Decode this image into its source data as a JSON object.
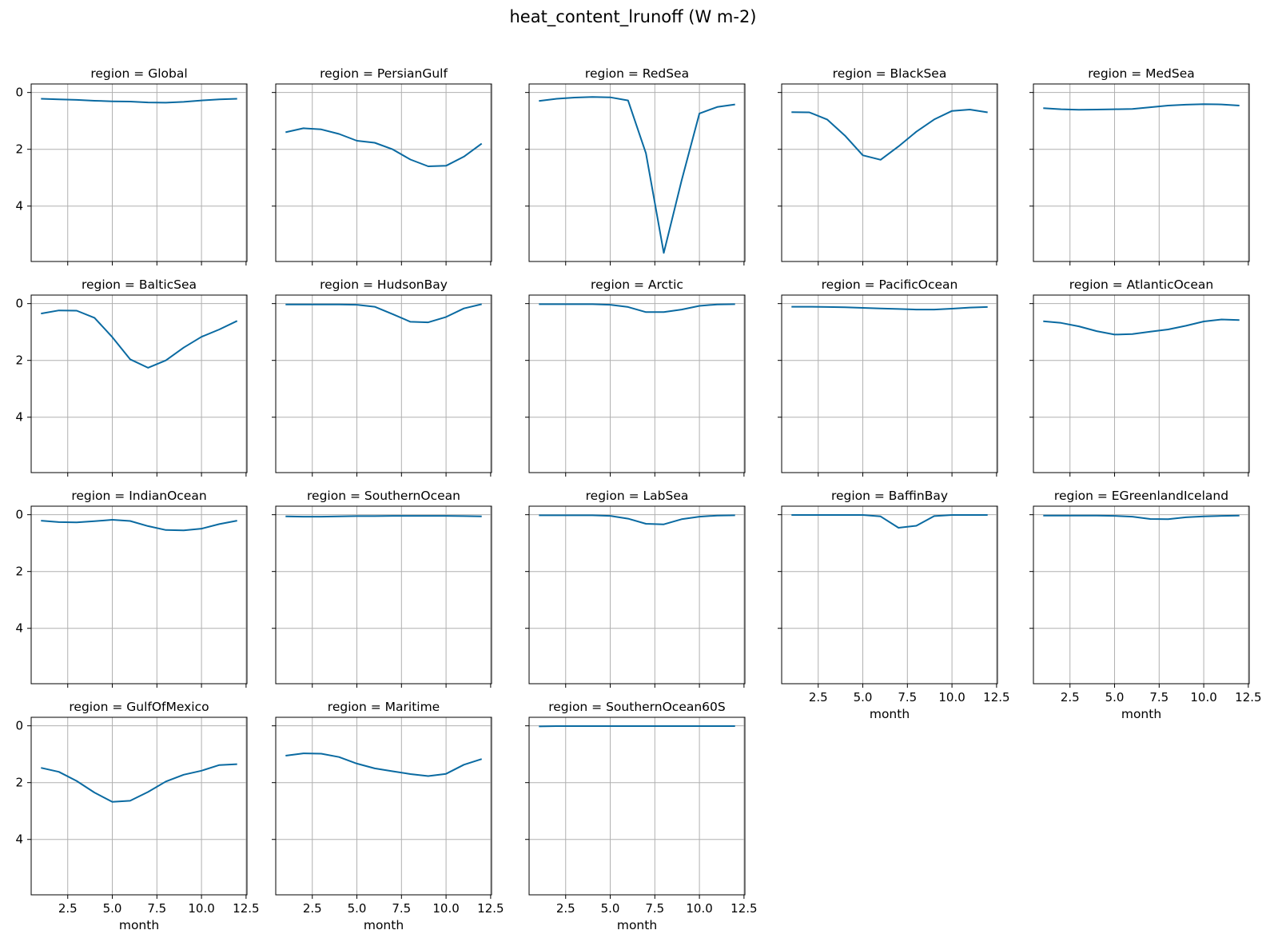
{
  "chart_data": {
    "type": "line",
    "title": "heat_content_lrunoff (W m-2)",
    "facet_label_prefix": "region = ",
    "xlabel": "month",
    "x": [
      1,
      2,
      3,
      4,
      5,
      6,
      7,
      8,
      9,
      10,
      11,
      12
    ],
    "xlim": [
      0.45,
      12.55
    ],
    "ylim": [
      5.95,
      -0.3
    ],
    "y_inverted": true,
    "xticks": [
      2.5,
      5.0,
      7.5,
      10.0,
      12.5
    ],
    "xtick_labels": [
      "2.5",
      "5.0",
      "7.5",
      "10.0",
      "12.5"
    ],
    "yticks": [
      0,
      2,
      4
    ],
    "ytick_labels": [
      "0",
      "2",
      "4"
    ],
    "grid": true,
    "line_color": "#0a6aa1",
    "series": [
      {
        "name": "Global",
        "values": [
          0.22,
          0.24,
          0.26,
          0.29,
          0.31,
          0.32,
          0.35,
          0.36,
          0.33,
          0.28,
          0.24,
          0.22
        ]
      },
      {
        "name": "PersianGulf",
        "values": [
          1.4,
          1.26,
          1.3,
          1.46,
          1.7,
          1.77,
          2.0,
          2.36,
          2.6,
          2.58,
          2.26,
          1.8
        ]
      },
      {
        "name": "RedSea",
        "values": [
          0.3,
          0.22,
          0.18,
          0.16,
          0.17,
          0.28,
          2.14,
          5.65,
          3.1,
          0.74,
          0.51,
          0.42
        ]
      },
      {
        "name": "BlackSea",
        "values": [
          0.69,
          0.7,
          0.95,
          1.52,
          2.21,
          2.37,
          1.9,
          1.38,
          0.95,
          0.65,
          0.6,
          0.7
        ]
      },
      {
        "name": "MedSea",
        "values": [
          0.55,
          0.59,
          0.61,
          0.6,
          0.59,
          0.58,
          0.52,
          0.46,
          0.43,
          0.41,
          0.42,
          0.46
        ]
      },
      {
        "name": "BalticSea",
        "values": [
          0.35,
          0.24,
          0.25,
          0.5,
          1.18,
          1.96,
          2.26,
          2.0,
          1.55,
          1.17,
          0.91,
          0.61
        ]
      },
      {
        "name": "HudsonBay",
        "values": [
          0.03,
          0.03,
          0.03,
          0.03,
          0.04,
          0.11,
          0.37,
          0.64,
          0.66,
          0.47,
          0.17,
          0.02
        ]
      },
      {
        "name": "Arctic",
        "values": [
          0.02,
          0.02,
          0.02,
          0.02,
          0.04,
          0.12,
          0.3,
          0.3,
          0.21,
          0.08,
          0.03,
          0.02
        ]
      },
      {
        "name": "PacificOcean",
        "values": [
          0.11,
          0.11,
          0.12,
          0.13,
          0.15,
          0.17,
          0.19,
          0.21,
          0.21,
          0.18,
          0.14,
          0.12
        ]
      },
      {
        "name": "AtlanticOcean",
        "values": [
          0.62,
          0.68,
          0.8,
          0.97,
          1.09,
          1.07,
          0.99,
          0.91,
          0.78,
          0.63,
          0.56,
          0.58
        ]
      },
      {
        "name": "IndianOcean",
        "values": [
          0.21,
          0.26,
          0.27,
          0.23,
          0.18,
          0.22,
          0.4,
          0.54,
          0.55,
          0.49,
          0.33,
          0.21
        ]
      },
      {
        "name": "SouthernOcean",
        "values": [
          0.06,
          0.07,
          0.07,
          0.06,
          0.05,
          0.05,
          0.04,
          0.04,
          0.04,
          0.04,
          0.05,
          0.06
        ]
      },
      {
        "name": "LabSea",
        "values": [
          0.02,
          0.02,
          0.02,
          0.02,
          0.04,
          0.14,
          0.32,
          0.34,
          0.16,
          0.07,
          0.03,
          0.02
        ]
      },
      {
        "name": "BaffinBay",
        "values": [
          0.01,
          0.01,
          0.01,
          0.01,
          0.01,
          0.06,
          0.46,
          0.39,
          0.05,
          0.01,
          0.01,
          0.01
        ]
      },
      {
        "name": "EGreenlandIceland",
        "values": [
          0.03,
          0.03,
          0.03,
          0.03,
          0.04,
          0.07,
          0.15,
          0.16,
          0.09,
          0.06,
          0.04,
          0.03
        ]
      },
      {
        "name": "GulfOfMexico",
        "values": [
          1.48,
          1.62,
          1.94,
          2.35,
          2.68,
          2.64,
          2.33,
          1.96,
          1.72,
          1.58,
          1.38,
          1.35
        ]
      },
      {
        "name": "Maritime",
        "values": [
          1.05,
          0.97,
          0.98,
          1.1,
          1.33,
          1.5,
          1.6,
          1.7,
          1.77,
          1.69,
          1.37,
          1.17
        ]
      },
      {
        "name": "SouthernOcean60S",
        "values": [
          0.02,
          0.01,
          0.01,
          0.01,
          0.01,
          0.01,
          0.01,
          0.01,
          0.01,
          0.01,
          0.01,
          0.01
        ]
      }
    ]
  }
}
